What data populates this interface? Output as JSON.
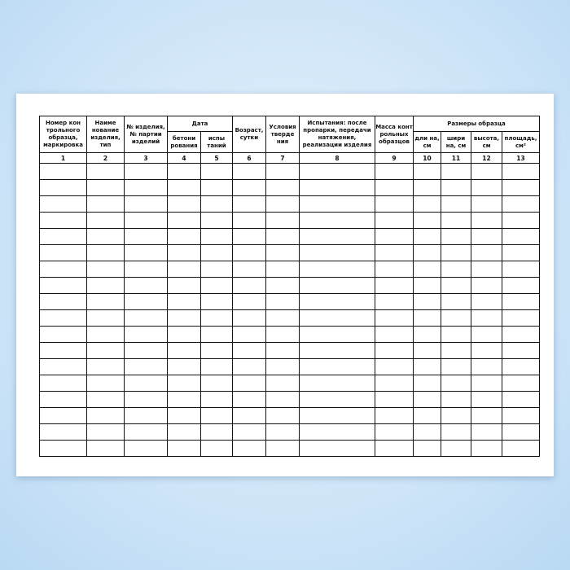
{
  "table": {
    "headers": {
      "col1": "Номер кон трольного образца, маркировка",
      "col2": "Наиме нование изделия, тип",
      "col3": "№ изделия, № партии изделий",
      "date_group": "Дата",
      "col4": "бетони рования",
      "col5": "испы таний",
      "col6": "Возраст, сутки",
      "col7": "Условия тверде ния",
      "col8": "Испытания: после пропарки, передачи натяжения, реализации изделия",
      "col9": "Масса конт рольных образцов",
      "size_group": "Размеры образца",
      "col10": "дли на, см",
      "col11": "шири на, см",
      "col12": "высота, см",
      "col13": "площадь, см²"
    },
    "column_numbers": [
      "1",
      "2",
      "3",
      "4",
      "5",
      "6",
      "7",
      "8",
      "9",
      "10",
      "11",
      "12",
      "13"
    ],
    "empty_rows": 18
  }
}
